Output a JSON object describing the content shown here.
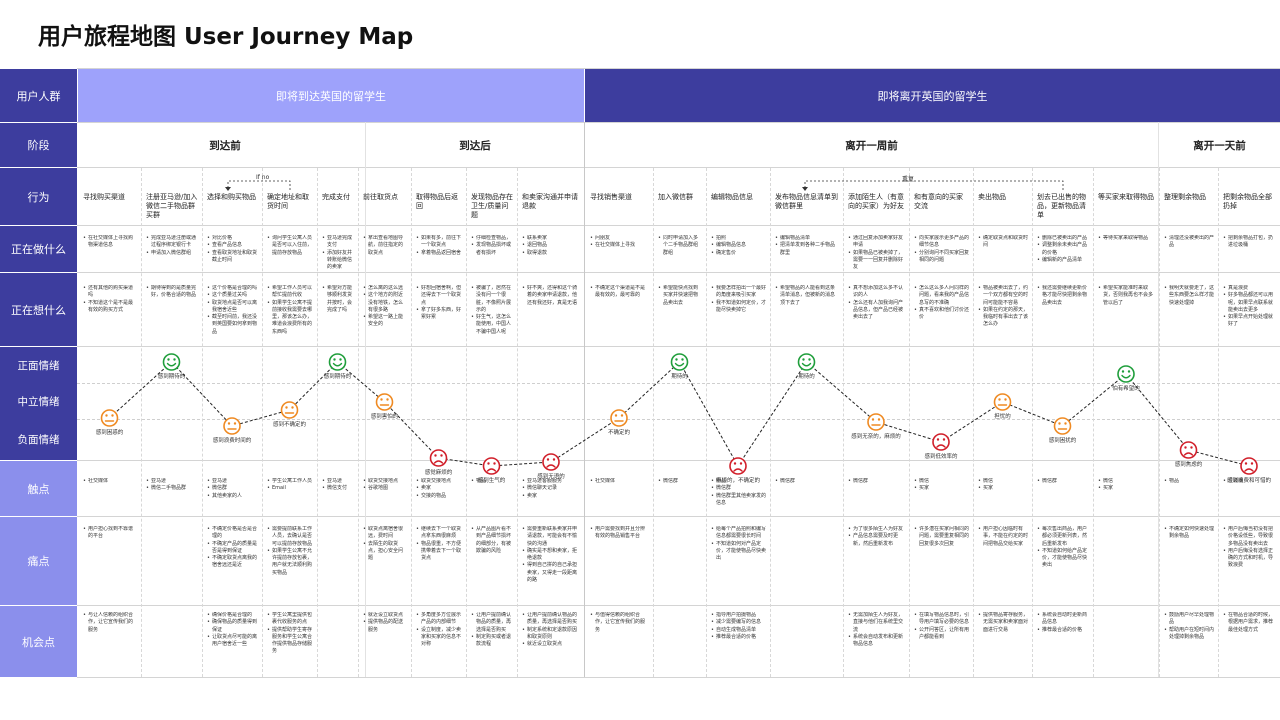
{
  "title": "用户旅程地图  User Journey Map",
  "row_labels": {
    "users": "用户人群",
    "stage": "阶段",
    "action": "行为",
    "doing": "正在做什么",
    "thinking": "正在想什么",
    "positive": "正面情绪",
    "neutral": "中立情绪",
    "negative": "负面情绪",
    "touchpoint": "触点",
    "pain": "痛点",
    "opportunity": "机会点"
  },
  "groups": {
    "arrive": "即将到达英国的留学生",
    "leave": "即将离开英国的留学生"
  },
  "stages": [
    "到达前",
    "到达后",
    "离开一周前",
    "离开一天前"
  ],
  "loops": {
    "ifno": "If no",
    "repeat": "重复"
  },
  "actions": [
    "寻找购买渠道",
    "注册亚马逊/加入微信二手物品群买群",
    "选择和购买物品",
    "确定地址和取货时间",
    "完成支付",
    "前往取货点",
    "取得物品后返回",
    "发现物品存在卫生/质量问题",
    "和卖家沟通并申请退款",
    "寻找销售渠道",
    "加入微信群",
    "编辑物品信息",
    "发布物品信息清单到微信群里",
    "添加陌生人（有意向的买家）为好友",
    "和有意向的买家交流",
    "卖出物品",
    "划去已出售的物品，更新物品清单",
    "等买家来取得物品",
    "整理剩余物品",
    "把剩余物品全部扔掉"
  ],
  "doing": [
    [
      "在社交媒体上寻找购物渠道信息"
    ],
    [
      "完成亚马逊注册或通过程序绑定银行卡",
      "申请加入微信群组"
    ],
    [
      "对比价格",
      "查看产品信息",
      "查看取货地址和取货截止时间"
    ],
    [
      "询问学生公寓人员是否可以入住前，提前存放物品"
    ],
    [
      "亚马逊完成支付",
      "添加好友并转账给微信的卖家"
    ],
    [
      "拿出查看地图导航，前往指定的取货点"
    ],
    [
      "如果有多，前往下一个取货点",
      "拿着物品返回宿舍"
    ],
    [
      "仔细检查物品，",
      "发现物品损坏或者有损坏"
    ],
    [
      "联系卖家",
      "退回物品",
      "取得退款"
    ],
    [
      "问朋友",
      "在社交媒体上寻找"
    ],
    [
      "同时申请加入多个二手物品群组群组"
    ],
    [
      "拍照",
      "编辑物品信息",
      "确定售价"
    ],
    [
      "编辑物品清单",
      "把清单发到各种二手物品群里"
    ],
    [
      "通过回复添加卖家好友申请",
      "如果物品已被卖掉了，需要一一回复并删除好友"
    ],
    [
      "向买家展示更多产品的细节信息",
      "分别询问不同买家回复相同的问题"
    ],
    [
      "确定取货点和取货时间"
    ],
    [
      "删除已被卖出的产品",
      "调整剩余未卖出产品的价格",
      "编辑新的产品清单"
    ],
    [
      "等待买家来取得物品"
    ],
    [
      "清理还没被卖出的产品"
    ],
    [
      "把剩余物品打包，扔进垃圾桶"
    ]
  ],
  "thinking": [
    [
      "还有其他的购买渠道吗",
      "不知道这个是不是最有效的购买方式"
    ],
    [
      "期待得到的是质量完好，价格合适的物品"
    ],
    [
      "这个价格是合理的吗",
      "这个质量过关吗",
      "取货地点是否可以离我宿舍近些",
      "截至时间前，我还没到英国要如何拿到物品"
    ],
    [
      "希望工作人员可以帮忙提前代收",
      "如果学生公寓不提前接收我需要去哪里，那该怎么办，难道会浪费所有的东西吗"
    ],
    [
      "希望对方能够顺利发货并按时，会完成了吗"
    ],
    [
      "怎么离的这么远",
      "这个地方的附近没有地铁，怎么有很多路",
      "希望这一路上能安全的"
    ],
    [
      "好想回宿舍啊，但还得去下一个取货点",
      "拿了好多东西，好累好累"
    ],
    [
      "被骗了，居然在没有问一个很脏，不像照片展示的",
      "好生气，这怎么能使用，中国人不骗中国人呢"
    ],
    [
      "好不爽，还得和这个骑着的卖家申请退款，他还有我还好，真是无语"
    ],
    [
      "不确定这个渠道是不是最有效的，最可靠的"
    ],
    [
      "希望能快点找到买家并快速把物品卖出去"
    ],
    [
      "我要怎样拍出一个最好的角度来吸引买家",
      "我不知道如何定价，才能尽快卖掉它"
    ],
    [
      "希望物品的人能看到这条清单消息，但被新的消息顶下去了"
    ],
    [
      "真不想添加这么多不认识的人",
      "怎么还有人加我询问产品信息，但产品已经被卖出去了"
    ],
    [
      "怎么这么多人问同样的问题，看来我的产品信息写的不准确",
      "真不喜欢和他们讨价还价"
    ],
    [
      "物品被卖出去了，约一个双方都有空的时间可能能不容易",
      "如果在约定的那天，我临时有事出去了该怎么办"
    ],
    [
      "我还需要继续更新价格才能尽快把剩余物品卖出去"
    ],
    [
      "希望买家能准时来取货，否则我再也不会多管以后了"
    ],
    [
      "我明天就要走了，这些东西要怎么样才能快速处理掉"
    ],
    [
      "真是浪费",
      "好多物品都还可以用呢，如果早点联系就能卖出去更多",
      "如果早点开始处理就好了"
    ]
  ],
  "emotion_labels": [
    "感到困惑的",
    "感到期待的",
    "感到浪费时间的",
    "感到不确定的",
    "感到期待的",
    "感到害怕的",
    "感觉麻烦的",
    "感到生气的",
    "感到无语的",
    "不确定的",
    "期待的",
    "麻烦的，不确定的",
    "期待的",
    "感到无奈的，麻烦的",
    "感到低效率的",
    "担忧的",
    "感到困扰的",
    "怕有希望的",
    "感到焦虑的",
    "感到浪费和可惜的"
  ],
  "emotions": [
    -0.4,
    1,
    -0.6,
    -0.2,
    1,
    0,
    -1.4,
    -1.6,
    -1.5,
    -0.4,
    1,
    -1.6,
    1,
    -0.5,
    -1,
    0,
    -0.6,
    0.7,
    -1.2,
    -1.6
  ],
  "touchpoints": [
    [
      "社交媒体"
    ],
    [
      "亚马逊",
      "微信二手物品群"
    ],
    [
      "亚马逊",
      "微信群",
      "其他卖家的人"
    ],
    [
      "学生公寓工作人员",
      "Email"
    ],
    [
      "亚马逊",
      "微信支付"
    ],
    [
      "取货交接地点",
      "谷歌地图"
    ],
    [
      "取货交接地点",
      "卖家",
      "交接的物品"
    ],
    [
      "物品"
    ],
    [
      "亚马逊客服服务",
      "微信聊天记录",
      "卖家"
    ],
    [
      "社交媒体"
    ],
    [
      "微信群"
    ],
    [
      "物品",
      "微信群",
      "微信群里其他卖家发的信息"
    ],
    [
      "微信群"
    ],
    [
      "微信群"
    ],
    [
      "微信",
      "买家"
    ],
    [
      "微信",
      "买家"
    ],
    [
      "微信群"
    ],
    [
      "微信",
      "买家"
    ],
    [
      "物品"
    ],
    [
      "垃圾桶"
    ]
  ],
  "pains": [
    [
      "用户担心找到不靠谱的平台"
    ],
    [],
    [
      "不确定价格是否是合理的",
      "不确定产品的质量是否是得到保证",
      "不确定取货点离我的宿舍远还是近"
    ],
    [
      "需要提前联系工作人员，去确认是否可以提前存放物品",
      "如果学生公寓不允许提前存放包裹，用户就无法顺利购买物品"
    ],
    [],
    [
      "取货点离宿舍很远，费时间",
      "去陌生的取货点，担心安全问题"
    ],
    [
      "继续去下一个取货点拿东西很麻烦",
      "物品很重，不方便携带着去下一个取货点"
    ],
    [
      "从产品图片看不到产品细节损坏的细部分，有被欺骗的风险"
    ],
    [
      "需要重新联系卖家并申请退款，可能会有不愉快的沟通",
      "确实是不想和卖家，拒绝退款",
      "得到自己拼的自己承担卖家，又得走一段距离的路"
    ],
    [
      "用户需要找到并且分辨有效的物品销售平台"
    ],
    [],
    [
      "给每个产品拍照和编写信息都需要很长时间",
      "不知道如何对产品定价，才能使物品尽快卖出"
    ],
    [],
    [
      "为了很多陌生人为好友",
      "产品信息需要及时更新，然后重新发布"
    ],
    [
      "许多潜在买家问相同的问题，需要重复相同的回复很多次回复"
    ],
    [
      "用户担心因临时有事，不能在约定的时间把物品交给买家"
    ],
    [
      "每次售出商品，用户都必须更新列表，然后重新发布",
      "不知道如何给产品定价，才能使物品尽快卖出"
    ],
    [],
    [
      "不确定如何快速处理剩余物品"
    ],
    [
      "用户后悔当初没有把价格设低些，导致很多物品没有卖出去",
      "用户后悔没有选择正确的方式和时机，导致浪费"
    ]
  ],
  "opportunities": [
    [
      "与让人信赖的组织合作，让它宣传我们的服务"
    ],
    [],
    [
      "确保价格是合理的",
      "确保物品的质量得到保证",
      "让取货点尽可能的离用户宿舍近一些"
    ],
    [
      "学生公寓里提供包裹代收服务的点",
      "提供帮助学生寄存服务和学生公寓合作提供物品存储服务"
    ],
    [],
    [
      "就近设立取货点",
      "提供物品的配送服务"
    ],
    [
      "多角度多方位展示产品的内部细节",
      "设立制度，减少卖家和买家的信息不对称"
    ],
    [
      "让用户提前确认物品的质量，再选择是否购买",
      "制定购买或者退款流程"
    ],
    [
      "让用户提前确认物品的质量，再选择是否购买",
      "制定系统和定退款原因和取货原则",
      "就近设立取货点"
    ],
    [
      "与值得信赖的组织合作，让它宣传我们的服务"
    ],
    [],
    [
      "指导用户拍摄物品",
      "减少需要编写的信息",
      "自动生成物品清单",
      "推荐最合适的价格"
    ],
    [],
    [
      "无需加陌生人为好友，直接与他们在系统里交流",
      "系统会自动发布和更新物品信息"
    ],
    [
      "在填写物品信息时，引导用户填写必要的信息",
      "公开问答区，让所有用户都能看到"
    ],
    [
      "提供物品寄存服务，无需买家和卖家面对面进行交易"
    ],
    [
      "系统会自动时更新商品信息",
      "推荐最合适的价格"
    ],
    [],
    [
      "鼓励用户尽早处理物品",
      "帮助用户在短时间内处理掉剩余物品"
    ],
    [
      "在物品合适的时候，根据用户需求，推荐最佳处理方式"
    ]
  ]
}
